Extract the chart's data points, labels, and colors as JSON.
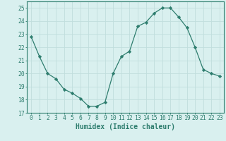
{
  "x": [
    0,
    1,
    2,
    3,
    4,
    5,
    6,
    7,
    8,
    9,
    10,
    11,
    12,
    13,
    14,
    15,
    16,
    17,
    18,
    19,
    20,
    21,
    22,
    23
  ],
  "y": [
    22.8,
    21.3,
    20.0,
    19.6,
    18.8,
    18.5,
    18.1,
    17.5,
    17.5,
    17.8,
    20.0,
    21.3,
    21.7,
    23.6,
    23.9,
    24.6,
    25.0,
    25.0,
    24.3,
    23.5,
    22.0,
    20.3,
    20.0,
    19.8
  ],
  "xlabel": "Humidex (Indice chaleur)",
  "ylim": [
    17,
    25.5
  ],
  "xlim": [
    -0.5,
    23.5
  ],
  "yticks": [
    17,
    18,
    19,
    20,
    21,
    22,
    23,
    24,
    25
  ],
  "xticks": [
    0,
    1,
    2,
    3,
    4,
    5,
    6,
    7,
    8,
    9,
    10,
    11,
    12,
    13,
    14,
    15,
    16,
    17,
    18,
    19,
    20,
    21,
    22,
    23
  ],
  "line_color": "#2e7d6e",
  "marker": "D",
  "marker_size": 2.2,
  "bg_color": "#d9f0ef",
  "grid_color": "#c0dedd",
  "axis_color": "#2e7d6e",
  "label_fontsize": 7.0,
  "tick_fontsize": 5.8
}
